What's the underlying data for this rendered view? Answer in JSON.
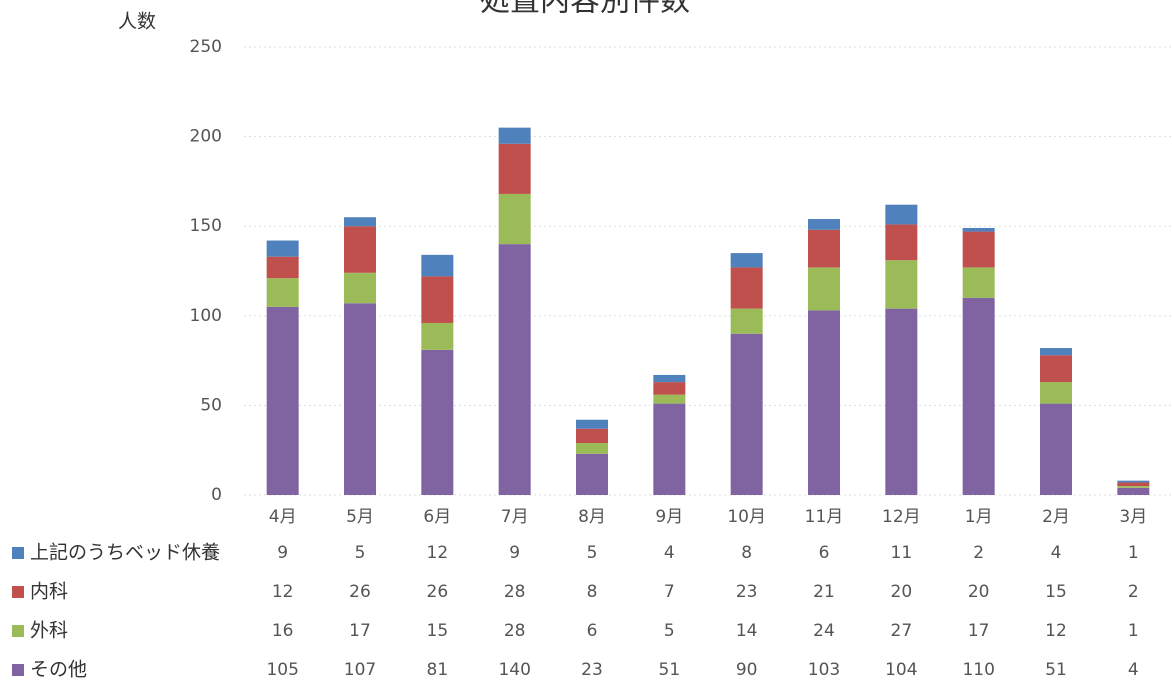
{
  "chart_data": {
    "type": "stacked_bar",
    "title": "処置内容別件数",
    "y_label": "人数",
    "categories": [
      "4月",
      "5月",
      "6月",
      "7月",
      "8月",
      "9月",
      "10月",
      "11月",
      "12月",
      "1月",
      "2月",
      "3月"
    ],
    "series": [
      {
        "name": "上記のうちベッド休養",
        "color": "#4f81bd",
        "values": [
          9,
          5,
          12,
          9,
          5,
          4,
          8,
          6,
          11,
          2,
          4,
          1
        ]
      },
      {
        "name": "内科",
        "color": "#c0504d",
        "values": [
          12,
          26,
          26,
          28,
          8,
          7,
          23,
          21,
          20,
          20,
          15,
          2
        ]
      },
      {
        "name": "外科",
        "color": "#9bbb59",
        "values": [
          16,
          17,
          15,
          28,
          6,
          5,
          14,
          24,
          27,
          17,
          12,
          1
        ]
      },
      {
        "name": "その他",
        "color": "#8064a2",
        "values": [
          105,
          107,
          81,
          140,
          23,
          51,
          90,
          103,
          104,
          110,
          51,
          4
        ]
      }
    ],
    "ylim": [
      0,
      250
    ],
    "yticks": [
      0,
      50,
      100,
      150,
      200,
      250
    ],
    "grid": true
  }
}
